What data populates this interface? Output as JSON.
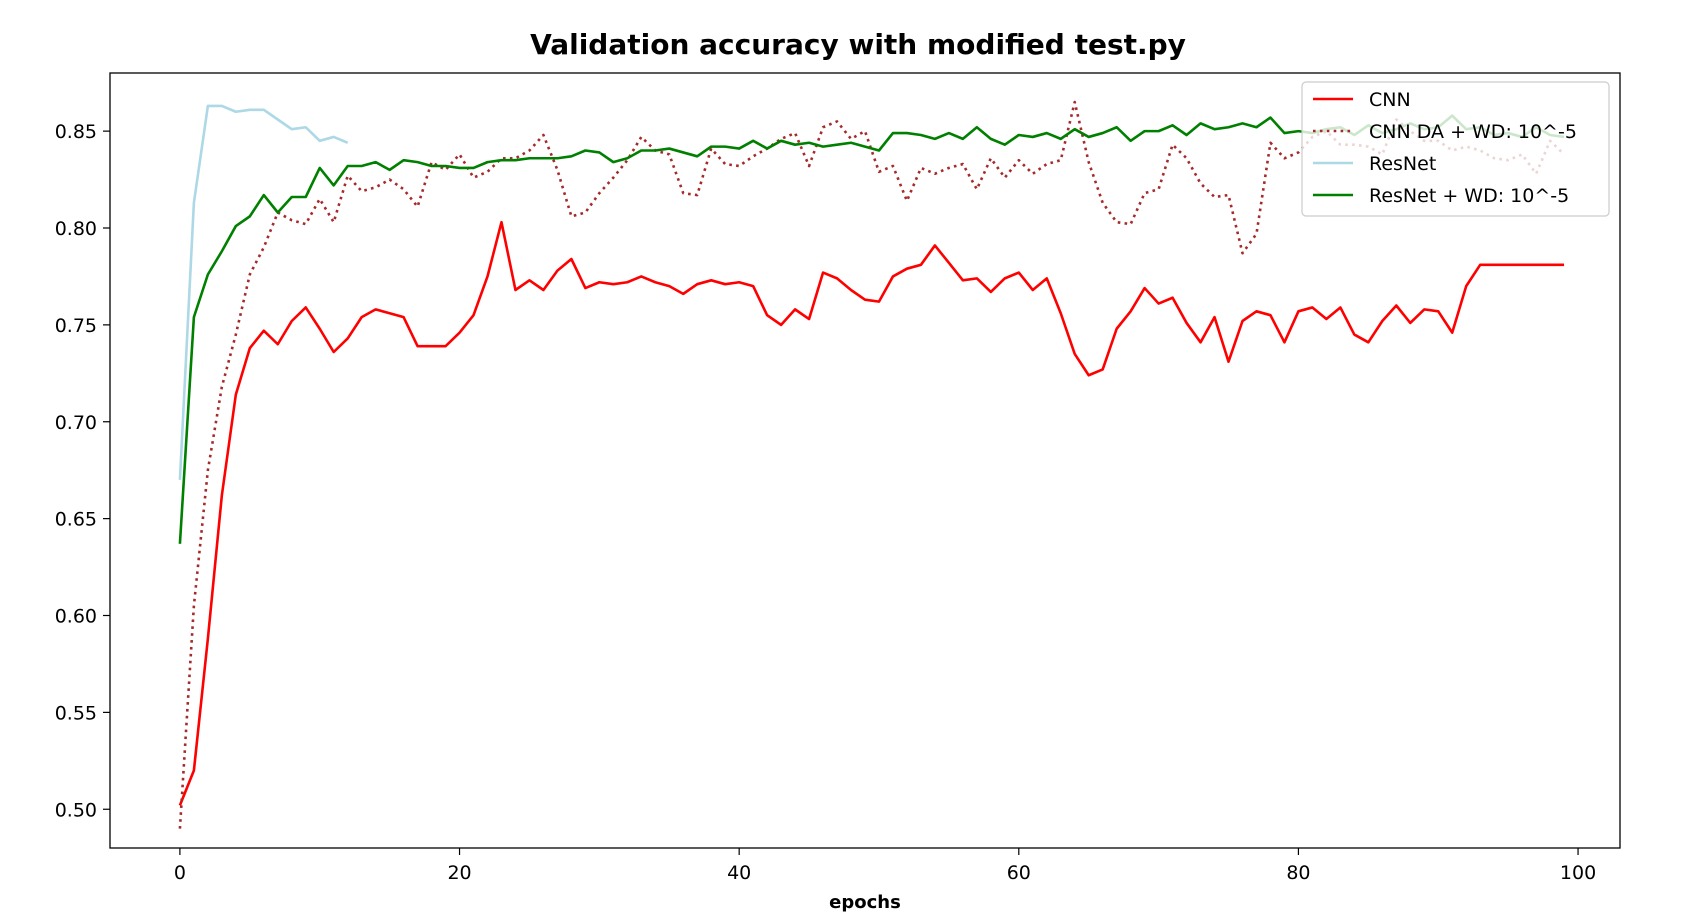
{
  "chart_data": {
    "type": "line",
    "title": "Validation accuracy with modified test.py",
    "xlabel": "epochs",
    "ylabel": "",
    "xlim": [
      -5,
      103
    ],
    "ylim": [
      0.48,
      0.88
    ],
    "xticks": [
      0,
      20,
      40,
      60,
      80,
      100
    ],
    "yticks": [
      0.5,
      0.55,
      0.6,
      0.65,
      0.7,
      0.75,
      0.8,
      0.85
    ],
    "grid": false,
    "legend_position": "top-right",
    "series": [
      {
        "name": "CNN",
        "color": "#ff0000",
        "style": "solid",
        "x": [
          0,
          1,
          2,
          3,
          4,
          5,
          6,
          7,
          8,
          9,
          10,
          11,
          12,
          13,
          14,
          15,
          16,
          17,
          18,
          19,
          20,
          21,
          22,
          23,
          24,
          25,
          26,
          27,
          28,
          29,
          30,
          31,
          32,
          33,
          34,
          35,
          36,
          37,
          38,
          39,
          40,
          41,
          42,
          43,
          44,
          45,
          46,
          47,
          48,
          49,
          50,
          51,
          52,
          53,
          54,
          55,
          56,
          57,
          58,
          59,
          60,
          61,
          62,
          63,
          64,
          65,
          66,
          67,
          68,
          69,
          70,
          71,
          72,
          73,
          74,
          75,
          76,
          77,
          78,
          79,
          80,
          81,
          82,
          83,
          84,
          85,
          86,
          87,
          88,
          89,
          90,
          91,
          92,
          93,
          94,
          95,
          96,
          97,
          98,
          99
        ],
        "values": [
          0.502,
          0.52,
          0.588,
          0.662,
          0.714,
          0.738,
          0.747,
          0.74,
          0.752,
          0.759,
          0.748,
          0.736,
          0.743,
          0.754,
          0.758,
          0.756,
          0.754,
          0.739,
          0.739,
          0.739,
          0.746,
          0.755,
          0.775,
          0.803,
          0.768,
          0.773,
          0.768,
          0.778,
          0.784,
          0.769,
          0.772,
          0.771,
          0.772,
          0.775,
          0.772,
          0.77,
          0.766,
          0.771,
          0.773,
          0.771,
          0.772,
          0.77,
          0.755,
          0.75,
          0.758,
          0.753,
          0.777,
          0.774,
          0.768,
          0.763,
          0.762,
          0.775,
          0.779,
          0.781,
          0.791,
          0.782,
          0.773,
          0.774,
          0.767,
          0.774,
          0.777,
          0.768,
          0.774,
          0.756,
          0.735,
          0.724,
          0.727,
          0.748,
          0.757,
          0.769,
          0.761,
          0.764,
          0.751,
          0.741,
          0.754,
          0.731,
          0.752,
          0.757,
          0.755,
          0.741,
          0.757,
          0.759,
          0.753,
          0.759,
          0.745,
          0.741,
          0.752,
          0.76,
          0.751,
          0.758,
          0.757,
          0.746,
          0.77,
          0.781,
          0.781,
          0.781,
          0.781,
          0.781,
          0.781,
          0.781
        ]
      },
      {
        "name": "CNN DA + WD: 10^-5",
        "color": "#a52a2a",
        "style": "dotted",
        "x": [
          0,
          1,
          2,
          3,
          4,
          5,
          6,
          7,
          8,
          9,
          10,
          11,
          12,
          13,
          14,
          15,
          16,
          17,
          18,
          19,
          20,
          21,
          22,
          23,
          24,
          25,
          26,
          27,
          28,
          29,
          30,
          31,
          32,
          33,
          34,
          35,
          36,
          37,
          38,
          39,
          40,
          41,
          42,
          43,
          44,
          45,
          46,
          47,
          48,
          49,
          50,
          51,
          52,
          53,
          54,
          55,
          56,
          57,
          58,
          59,
          60,
          61,
          62,
          63,
          64,
          65,
          66,
          67,
          68,
          69,
          70,
          71,
          72,
          73,
          74,
          75,
          76,
          77,
          78,
          79,
          80,
          81,
          82,
          83,
          84,
          85,
          86,
          87,
          88,
          89,
          90,
          91,
          92,
          93,
          94,
          95,
          96,
          97,
          98,
          99
        ],
        "values": [
          0.49,
          0.605,
          0.675,
          0.718,
          0.745,
          0.776,
          0.79,
          0.808,
          0.804,
          0.802,
          0.815,
          0.803,
          0.827,
          0.819,
          0.821,
          0.825,
          0.82,
          0.811,
          0.834,
          0.83,
          0.838,
          0.826,
          0.829,
          0.836,
          0.836,
          0.84,
          0.848,
          0.83,
          0.806,
          0.808,
          0.818,
          0.826,
          0.835,
          0.847,
          0.84,
          0.838,
          0.818,
          0.817,
          0.841,
          0.833,
          0.832,
          0.837,
          0.841,
          0.846,
          0.849,
          0.832,
          0.852,
          0.855,
          0.846,
          0.85,
          0.829,
          0.832,
          0.814,
          0.831,
          0.828,
          0.831,
          0.833,
          0.82,
          0.836,
          0.826,
          0.835,
          0.828,
          0.833,
          0.835,
          0.865,
          0.834,
          0.813,
          0.803,
          0.802,
          0.818,
          0.82,
          0.843,
          0.836,
          0.823,
          0.816,
          0.817,
          0.787,
          0.797,
          0.844,
          0.836,
          0.839,
          0.847,
          0.85,
          0.843,
          0.843,
          0.842,
          0.838,
          0.856,
          0.85,
          0.845,
          0.845,
          0.84,
          0.842,
          0.84,
          0.836,
          0.835,
          0.838,
          0.828,
          0.845,
          0.838
        ]
      },
      {
        "name": "ResNet",
        "color": "#add8e6",
        "style": "solid",
        "x": [
          0,
          1,
          2,
          3,
          4,
          5,
          6,
          7,
          8,
          9,
          10,
          11,
          12
        ],
        "values": [
          0.67,
          0.813,
          0.863,
          0.863,
          0.86,
          0.861,
          0.861,
          0.856,
          0.851,
          0.852,
          0.845,
          0.847,
          0.844
        ]
      },
      {
        "name": "ResNet + WD: 10^-5",
        "color": "#008000",
        "style": "solid",
        "x": [
          0,
          1,
          2,
          3,
          4,
          5,
          6,
          7,
          8,
          9,
          10,
          11,
          12,
          13,
          14,
          15,
          16,
          17,
          18,
          19,
          20,
          21,
          22,
          23,
          24,
          25,
          26,
          27,
          28,
          29,
          30,
          31,
          32,
          33,
          34,
          35,
          36,
          37,
          38,
          39,
          40,
          41,
          42,
          43,
          44,
          45,
          46,
          47,
          48,
          49,
          50,
          51,
          52,
          53,
          54,
          55,
          56,
          57,
          58,
          59,
          60,
          61,
          62,
          63,
          64,
          65,
          66,
          67,
          68,
          69,
          70,
          71,
          72,
          73,
          74,
          75,
          76,
          77,
          78,
          79,
          80,
          81,
          82,
          83,
          84,
          85,
          86,
          87,
          88,
          89,
          90,
          91,
          92,
          93,
          94,
          95,
          96,
          97,
          98,
          99
        ],
        "values": [
          0.637,
          0.754,
          0.776,
          0.788,
          0.801,
          0.806,
          0.817,
          0.808,
          0.816,
          0.816,
          0.831,
          0.822,
          0.832,
          0.832,
          0.834,
          0.83,
          0.835,
          0.834,
          0.832,
          0.832,
          0.831,
          0.831,
          0.834,
          0.835,
          0.835,
          0.836,
          0.836,
          0.836,
          0.837,
          0.84,
          0.839,
          0.834,
          0.836,
          0.84,
          0.84,
          0.841,
          0.839,
          0.837,
          0.842,
          0.842,
          0.841,
          0.845,
          0.841,
          0.845,
          0.843,
          0.844,
          0.842,
          0.843,
          0.844,
          0.842,
          0.84,
          0.849,
          0.849,
          0.848,
          0.846,
          0.849,
          0.846,
          0.852,
          0.846,
          0.843,
          0.848,
          0.847,
          0.849,
          0.846,
          0.851,
          0.847,
          0.849,
          0.852,
          0.845,
          0.85,
          0.85,
          0.853,
          0.848,
          0.854,
          0.851,
          0.852,
          0.854,
          0.852,
          0.857,
          0.849,
          0.85,
          0.849,
          0.851,
          0.852,
          0.848,
          0.853,
          0.849,
          0.851,
          0.854,
          0.851,
          0.852,
          0.858,
          0.851,
          0.852,
          0.848,
          0.849,
          0.847,
          0.852,
          0.848,
          0.847
        ]
      }
    ]
  }
}
